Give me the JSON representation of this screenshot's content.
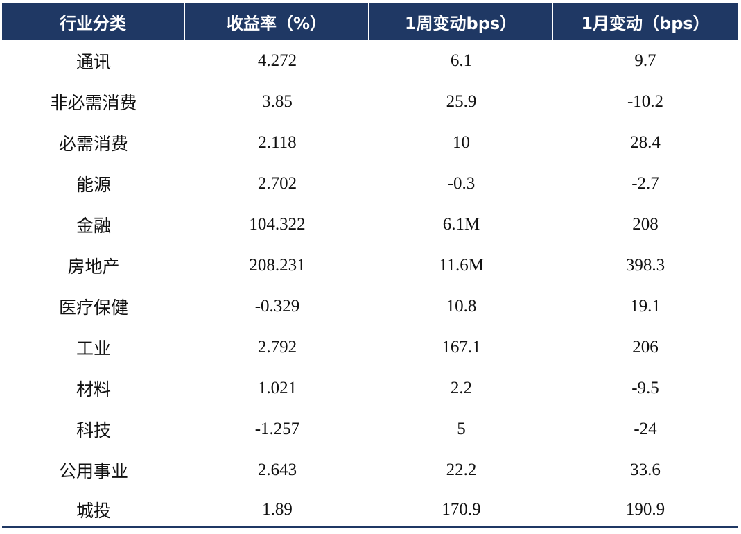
{
  "table": {
    "headers": [
      "行业分类",
      "收益率（%）",
      "1周变动bps）",
      "1月变动（bps）"
    ],
    "rows": [
      {
        "category": "通讯",
        "yield": "4.272",
        "week_change": "6.1",
        "month_change": "9.7"
      },
      {
        "category": "非必需消费",
        "yield": "3.85",
        "week_change": "25.9",
        "month_change": "-10.2"
      },
      {
        "category": "必需消费",
        "yield": "2.118",
        "week_change": "10",
        "month_change": "28.4"
      },
      {
        "category": "能源",
        "yield": "2.702",
        "week_change": "-0.3",
        "month_change": "-2.7"
      },
      {
        "category": "金融",
        "yield": "104.322",
        "week_change": "6.1M",
        "month_change": "208"
      },
      {
        "category": "房地产",
        "yield": "208.231",
        "week_change": "11.6M",
        "month_change": "398.3"
      },
      {
        "category": "医疗保健",
        "yield": "-0.329",
        "week_change": "10.8",
        "month_change": "19.1"
      },
      {
        "category": "工业",
        "yield": "2.792",
        "week_change": "167.1",
        "month_change": "206"
      },
      {
        "category": "材料",
        "yield": "1.021",
        "week_change": "2.2",
        "month_change": "-9.5"
      },
      {
        "category": "科技",
        "yield": "-1.257",
        "week_change": "5",
        "month_change": "-24"
      },
      {
        "category": "公用事业",
        "yield": "2.643",
        "week_change": "22.2",
        "month_change": "33.6"
      },
      {
        "category": "城投",
        "yield": "1.89",
        "week_change": "170.9",
        "month_change": "190.9"
      }
    ]
  },
  "colors": {
    "header_background": "#1f3864",
    "header_text": "#ffffff",
    "body_text": "#111111",
    "bottom_rule": "#1f3864"
  }
}
